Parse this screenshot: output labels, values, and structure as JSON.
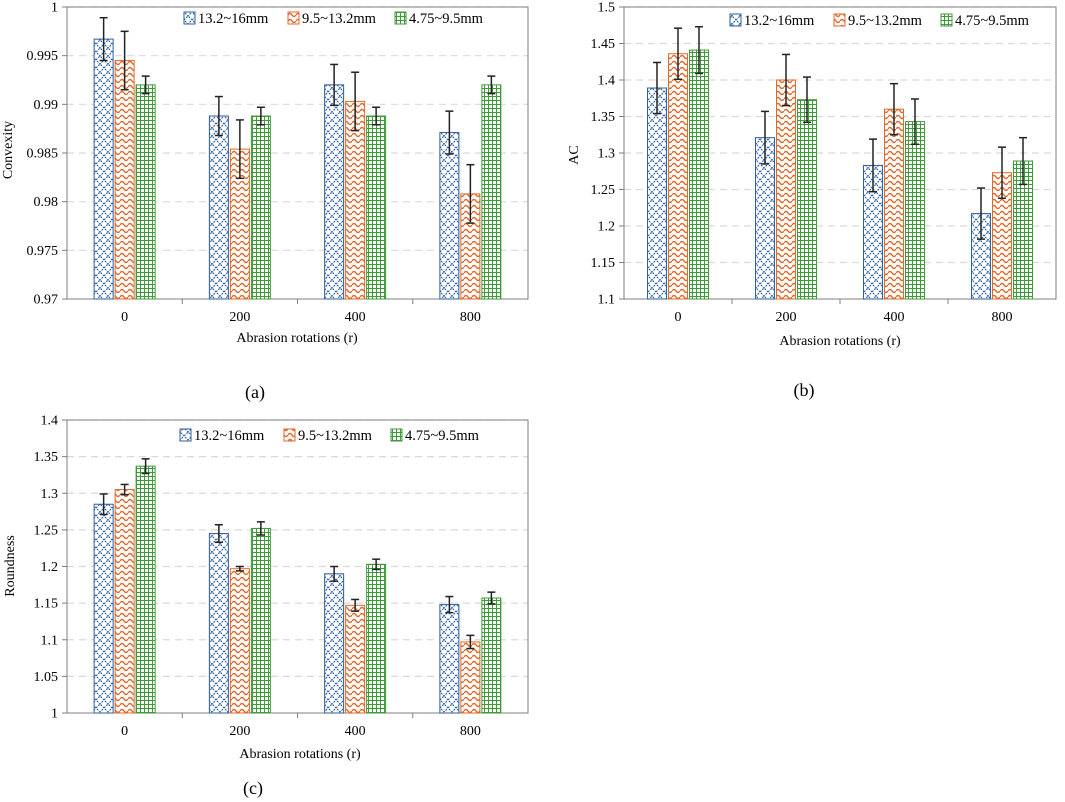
{
  "colors": {
    "series_colors": [
      "#2e5f9e",
      "#e2692a",
      "#3f9a3a"
    ],
    "axis": "#7f7f7f",
    "grid": "#d9d9d9",
    "error_bar": "#222222"
  },
  "chart_data": [
    {
      "id": "a",
      "type": "bar",
      "caption": "(a)",
      "ylabel": "Convexity",
      "xlabel": "Abrasion rotations (r)",
      "categories": [
        "0",
        "200",
        "400",
        "800"
      ],
      "ylim": [
        0.97,
        1.0
      ],
      "yticks": [
        0.97,
        0.975,
        0.98,
        0.985,
        0.99,
        0.995,
        1.0
      ],
      "ytick_labels": [
        "0.97",
        "0.975",
        "0.98",
        "0.985",
        "0.99",
        "0.995",
        "1"
      ],
      "grid": true,
      "legend_position": "top-right",
      "series": [
        {
          "name": "13.2~16mm",
          "pattern": "diamond",
          "values": [
            0.9967,
            0.9888,
            0.992,
            0.9871
          ],
          "errors": [
            0.0022,
            0.002,
            0.0021,
            0.0022
          ]
        },
        {
          "name": "9.5~13.2mm",
          "pattern": "wave",
          "values": [
            0.9945,
            0.9854,
            0.9903,
            0.9808
          ],
          "errors": [
            0.003,
            0.003,
            0.003,
            0.003
          ]
        },
        {
          "name": "4.75~9.5mm",
          "pattern": "grid",
          "values": [
            0.992,
            0.9888,
            0.9888,
            0.992
          ],
          "errors": [
            0.0009,
            0.0009,
            0.0009,
            0.0009
          ]
        }
      ]
    },
    {
      "id": "b",
      "type": "bar",
      "caption": "(b)",
      "ylabel": "AC",
      "xlabel": "Abrasion rotations (r)",
      "categories": [
        "0",
        "200",
        "400",
        "800"
      ],
      "ylim": [
        1.1,
        1.5
      ],
      "yticks": [
        1.1,
        1.15,
        1.2,
        1.25,
        1.3,
        1.35,
        1.4,
        1.45,
        1.5
      ],
      "ytick_labels": [
        "1.1",
        "1.15",
        "1.2",
        "1.25",
        "1.3",
        "1.35",
        "1.4",
        "1.45",
        "1.5"
      ],
      "grid": true,
      "legend_position": "top-right",
      "series": [
        {
          "name": "13.2~16mm",
          "pattern": "diamond",
          "values": [
            1.389,
            1.321,
            1.283,
            1.217
          ],
          "errors": [
            0.035,
            0.036,
            0.036,
            0.035
          ]
        },
        {
          "name": "9.5~13.2mm",
          "pattern": "wave",
          "values": [
            1.436,
            1.4,
            1.36,
            1.273
          ],
          "errors": [
            0.035,
            0.035,
            0.035,
            0.035
          ]
        },
        {
          "name": "4.75~9.5mm",
          "pattern": "grid",
          "values": [
            1.441,
            1.373,
            1.343,
            1.289
          ],
          "errors": [
            0.032,
            0.031,
            0.031,
            0.032
          ]
        }
      ]
    },
    {
      "id": "c",
      "type": "bar",
      "caption": "(c)",
      "ylabel": "Roundness",
      "xlabel": "Abrasion rotations (r)",
      "categories": [
        "0",
        "200",
        "400",
        "800"
      ],
      "ylim": [
        1.0,
        1.4
      ],
      "yticks": [
        1.0,
        1.05,
        1.1,
        1.15,
        1.2,
        1.25,
        1.3,
        1.35,
        1.4
      ],
      "ytick_labels": [
        "1",
        "1.05",
        "1.1",
        "1.15",
        "1.2",
        "1.25",
        "1.3",
        "1.35",
        "1.4"
      ],
      "grid": true,
      "legend_position": "top-right",
      "series": [
        {
          "name": "13.2~16mm",
          "pattern": "diamond",
          "values": [
            1.285,
            1.245,
            1.19,
            1.148
          ],
          "errors": [
            0.014,
            0.012,
            0.01,
            0.011
          ]
        },
        {
          "name": "9.5~13.2mm",
          "pattern": "wave",
          "values": [
            1.305,
            1.197,
            1.147,
            1.097
          ],
          "errors": [
            0.007,
            0.003,
            0.008,
            0.009
          ]
        },
        {
          "name": "4.75~9.5mm",
          "pattern": "grid",
          "values": [
            1.337,
            1.252,
            1.203,
            1.157
          ],
          "errors": [
            0.01,
            0.009,
            0.007,
            0.008
          ]
        }
      ]
    }
  ]
}
